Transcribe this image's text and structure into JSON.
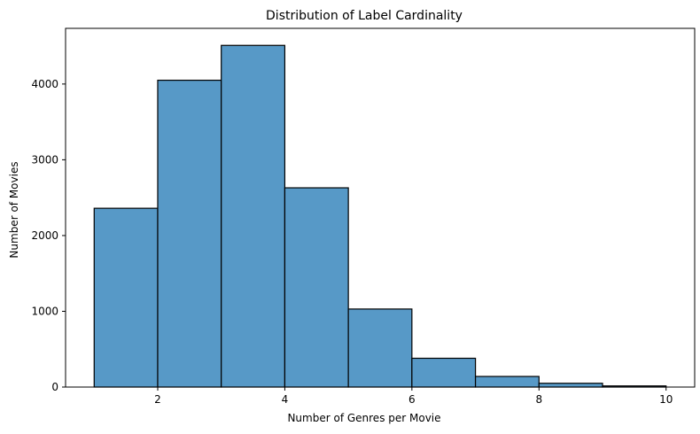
{
  "chart_data": {
    "type": "bar",
    "title": "Distribution of Label Cardinality",
    "xlabel": "Number of Genres per Movie",
    "ylabel": "Number of Movies",
    "bins": [
      {
        "start": 1,
        "end": 2,
        "count": 2360
      },
      {
        "start": 2,
        "end": 3,
        "count": 4050
      },
      {
        "start": 3,
        "end": 4,
        "count": 4510
      },
      {
        "start": 4,
        "end": 5,
        "count": 2630
      },
      {
        "start": 5,
        "end": 6,
        "count": 1030
      },
      {
        "start": 6,
        "end": 7,
        "count": 380
      },
      {
        "start": 7,
        "end": 8,
        "count": 140
      },
      {
        "start": 8,
        "end": 9,
        "count": 50
      },
      {
        "start": 9,
        "end": 10,
        "count": 15
      }
    ],
    "xlim": [
      0.55,
      10.45
    ],
    "ylim": [
      0,
      4735
    ],
    "xticks": [
      2,
      4,
      6,
      8,
      10
    ],
    "yticks": [
      0,
      1000,
      2000,
      3000,
      4000
    ],
    "bar_color": "#5799c7",
    "edge_color": "#000000",
    "grid": false
  }
}
